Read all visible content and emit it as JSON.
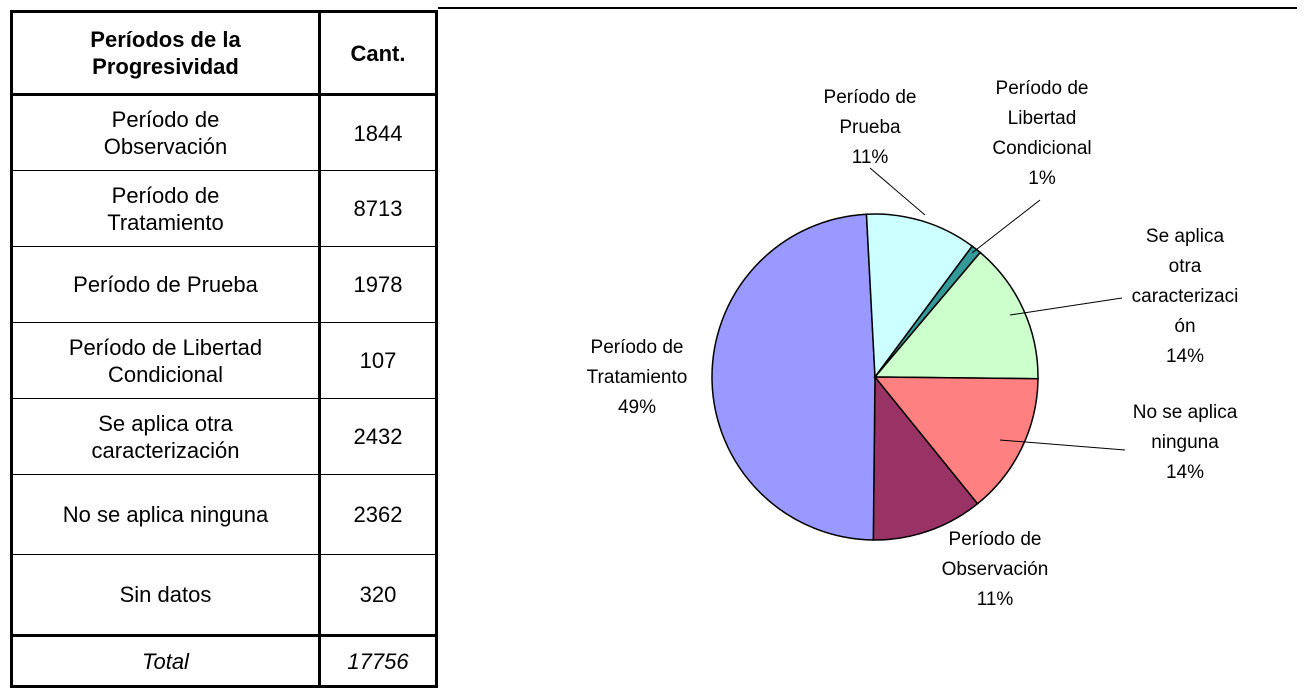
{
  "table": {
    "header": [
      "Períodos de la Progresividad",
      "Cant."
    ],
    "rows": [
      [
        "Período de Observación",
        "1844"
      ],
      [
        "Período de Tratamiento",
        "8713"
      ],
      [
        "Período de Prueba",
        "1978"
      ],
      [
        "Período de Libertad Condicional",
        "107"
      ],
      [
        "Se aplica otra caracterización",
        "2432"
      ],
      [
        "No se aplica ninguna",
        "2362"
      ],
      [
        "Sin datos",
        "320"
      ]
    ],
    "total": [
      "Total",
      "17756"
    ]
  },
  "chart_data": {
    "type": "pie",
    "categories": [
      "Período de Observación",
      "Período de Tratamiento",
      "Período de Prueba",
      "Período de Libertad Condicional",
      "Se aplica otra caracterización",
      "No se aplica ninguna"
    ],
    "values": [
      11,
      49,
      11,
      1,
      14,
      14
    ],
    "value_labels": [
      "11%",
      "49%",
      "11%",
      "1%",
      "14%",
      "14%"
    ],
    "colors": [
      "#993366",
      "#9999ff",
      "#ccffff",
      "#339999",
      "#ccffcc",
      "#ff8080"
    ]
  }
}
